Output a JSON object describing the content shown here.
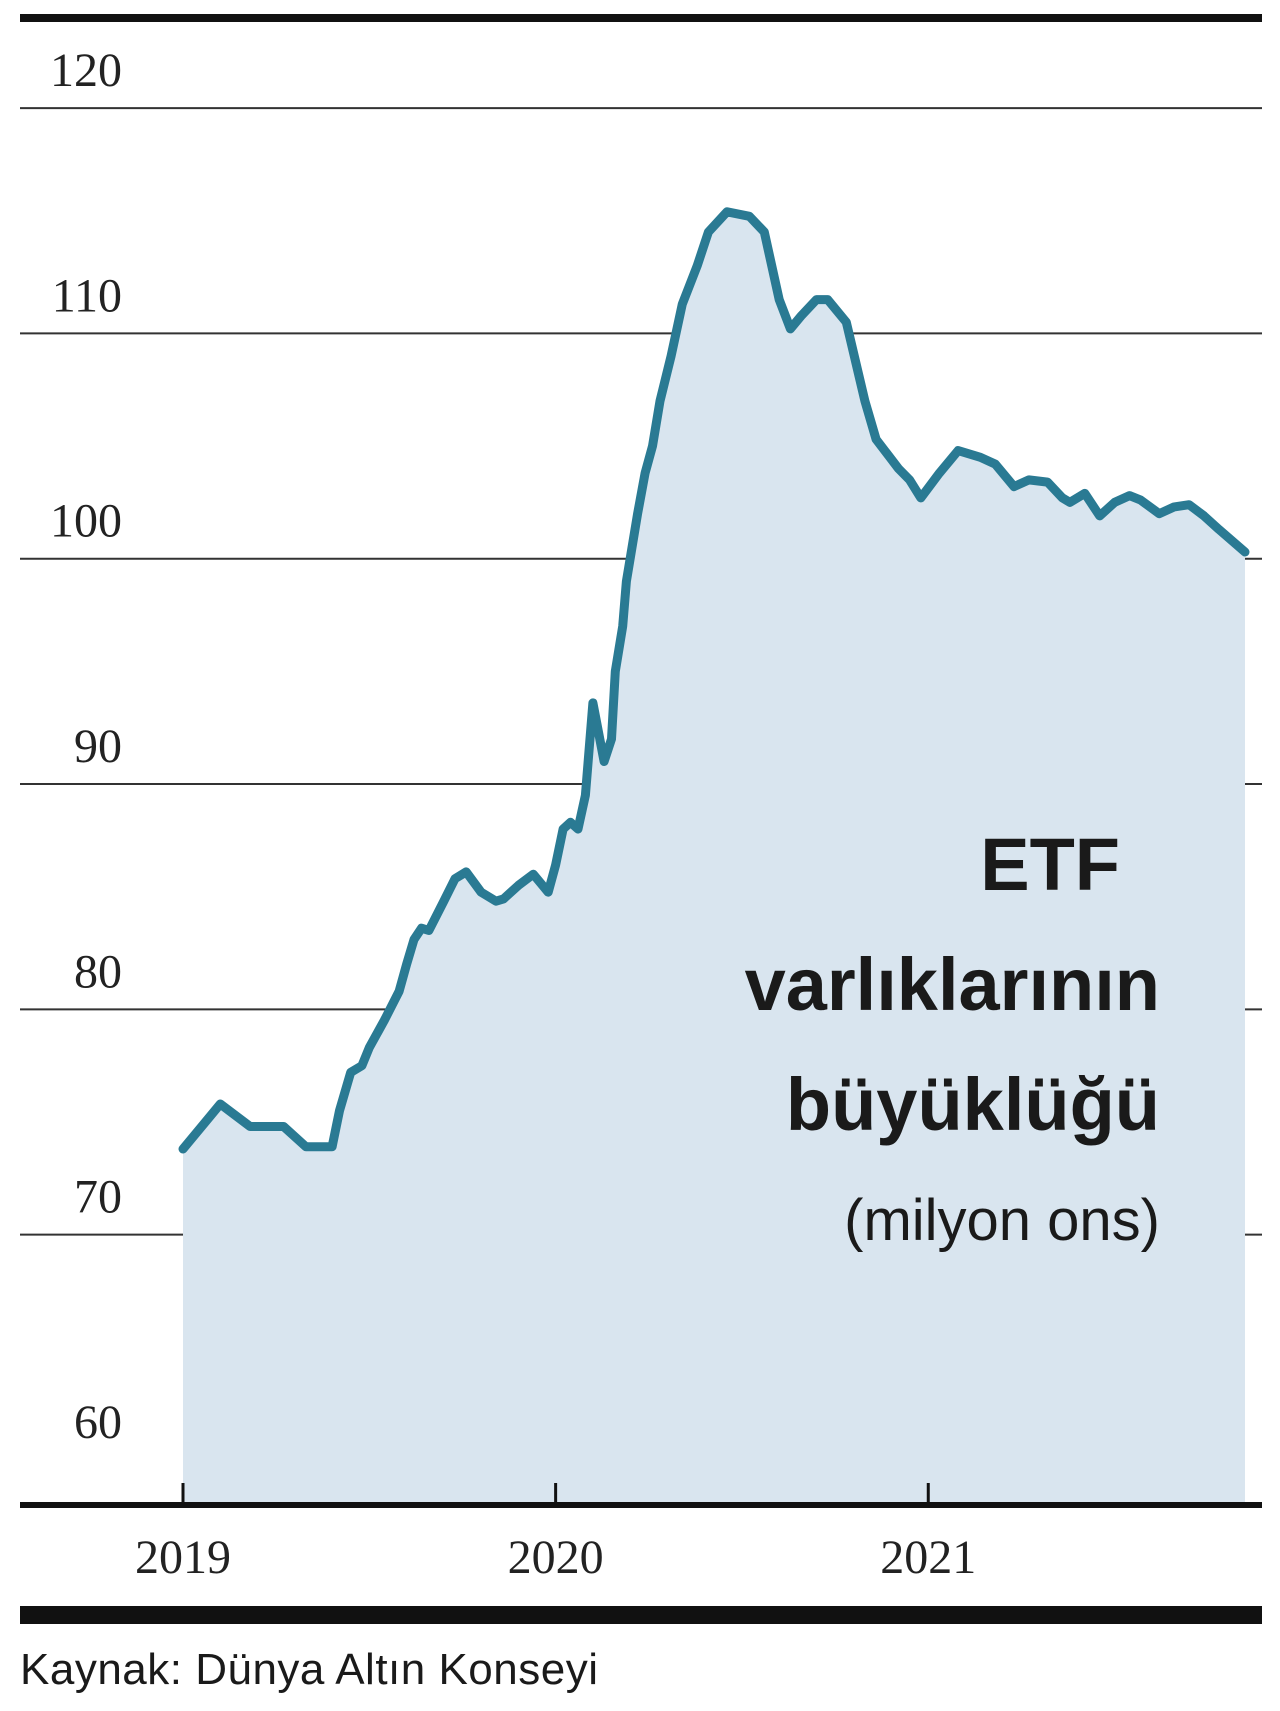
{
  "chart_data": {
    "type": "area",
    "title_lines": [
      "ETF",
      "varlıklarının",
      "büyüklüğü"
    ],
    "subtitle": "(milyon ons)",
    "ylim": [
      58,
      124
    ],
    "xlim": [
      2019.0,
      2021.85
    ],
    "yticks": [
      60,
      70,
      80,
      90,
      100,
      110,
      120
    ],
    "ytick_labels": [
      "60",
      "70",
      "80",
      "90",
      "100",
      "110",
      "120"
    ],
    "xticks": [
      2019,
      2020,
      2021
    ],
    "xtick_labels": [
      "2019",
      "2020",
      "2021"
    ],
    "grid": true,
    "colors": {
      "line": "#2a7a93",
      "fill": "#d9e5ef",
      "grid": "#333333",
      "axis": "#111111"
    },
    "series": [
      {
        "x": [
          2019.0,
          2019.06,
          2019.1,
          2019.18,
          2019.27,
          2019.33,
          2019.4,
          2019.42,
          2019.45,
          2019.48,
          2019.5,
          2019.54,
          2019.58,
          2019.6,
          2019.62,
          2019.64,
          2019.66,
          2019.7,
          2019.73,
          2019.76,
          2019.8,
          2019.84,
          2019.86,
          2019.9,
          2019.94,
          2019.98,
          2020.0,
          2020.02,
          2020.04,
          2020.06,
          2020.08,
          2020.1,
          2020.13,
          2020.15,
          2020.16,
          2020.18,
          2020.19,
          2020.22,
          2020.24,
          2020.26,
          2020.28,
          2020.31,
          2020.34,
          2020.38,
          2020.41,
          2020.46,
          2020.52,
          2020.56,
          2020.6,
          2020.63,
          2020.66,
          2020.7,
          2020.73,
          2020.78,
          2020.83,
          2020.86,
          2020.92,
          2020.95,
          2020.98,
          2021.03,
          2021.08,
          2021.14,
          2021.18,
          2021.23,
          2021.27,
          2021.32,
          2021.36,
          2021.38,
          2021.42,
          2021.46,
          2021.5,
          2021.54,
          2021.57,
          2021.62,
          2021.66,
          2021.7,
          2021.74,
          2021.78,
          2021.85
        ],
        "y": [
          73.8,
          75.0,
          75.8,
          74.8,
          74.8,
          73.9,
          73.9,
          75.5,
          77.2,
          77.5,
          78.3,
          79.5,
          80.8,
          82.0,
          83.1,
          83.6,
          83.5,
          84.8,
          85.8,
          86.1,
          85.2,
          84.8,
          84.9,
          85.5,
          86.0,
          85.2,
          86.4,
          88.0,
          88.3,
          88.0,
          89.5,
          93.6,
          91.0,
          92.0,
          95.0,
          97.0,
          99.0,
          102.0,
          103.8,
          105.0,
          107.0,
          109.0,
          111.3,
          113.0,
          114.5,
          115.4,
          115.2,
          114.5,
          111.5,
          110.2,
          110.8,
          111.5,
          111.5,
          110.5,
          107.0,
          105.3,
          104.0,
          103.5,
          102.7,
          103.8,
          104.8,
          104.5,
          104.2,
          103.2,
          103.5,
          103.4,
          102.7,
          102.5,
          102.9,
          101.9,
          102.5,
          102.8,
          102.6,
          102.0,
          102.3,
          102.4,
          101.9,
          101.3,
          100.3
        ]
      }
    ]
  },
  "footer": {
    "source": "Kaynak: Dünya Altın Konseyi"
  }
}
